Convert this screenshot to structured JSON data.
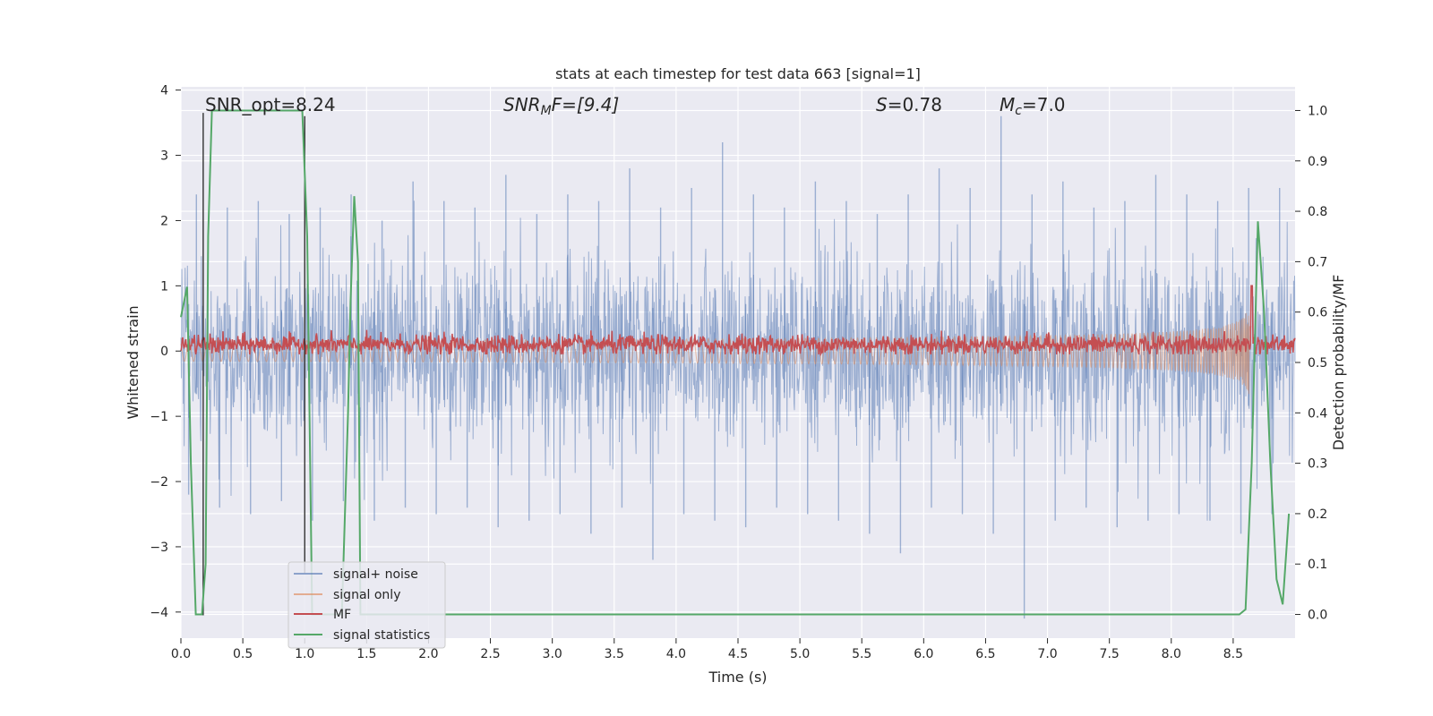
{
  "chart_data": {
    "type": "line",
    "title": "stats at each timestep for test data 663 [signal=1]",
    "xlabel": "Time (s)",
    "ylabel": "Whitened strain",
    "ylabel_right": "Detection probability/MF",
    "xlim": [
      0.0,
      9.0
    ],
    "ylim": [
      -4.4,
      4.05
    ],
    "ylim_right": [
      -0.047,
      1.047
    ],
    "x_ticks": [
      0.0,
      0.5,
      1.0,
      1.5,
      2.0,
      2.5,
      3.0,
      3.5,
      4.0,
      4.5,
      5.0,
      5.5,
      6.0,
      6.5,
      7.0,
      7.5,
      8.0,
      8.5
    ],
    "x_tick_labels": [
      "0.0",
      "0.5",
      "1.0",
      "1.5",
      "2.0",
      "2.5",
      "3.0",
      "3.5",
      "4.0",
      "4.5",
      "5.0",
      "5.5",
      "6.0",
      "6.5",
      "7.0",
      "7.5",
      "8.0",
      "8.5"
    ],
    "y_ticks": [
      4,
      3,
      2,
      1,
      0,
      -1,
      -2,
      -3,
      -4
    ],
    "y_tick_labels": [
      "4",
      "3",
      "2",
      "1",
      "0",
      "−1",
      "−2",
      "−3",
      "−4"
    ],
    "y_right_ticks": [
      1.0,
      0.9,
      0.8,
      0.7,
      0.6,
      0.5,
      0.4,
      0.3,
      0.2,
      0.1,
      0.0
    ],
    "y_right_tick_labels": [
      "1.0",
      "0.9",
      "0.8",
      "0.7",
      "0.6",
      "0.5",
      "0.4",
      "0.3",
      "0.2",
      "0.1",
      "0.0"
    ],
    "grid": true,
    "legend_position": "lower-left",
    "annotations": {
      "snr_opt": "SNR_opt=8.24",
      "snr_mf_sym": "SNR",
      "snr_mf_sub": "M",
      "snr_mf_rest": "F=[9.4]",
      "s_sym": "S",
      "s_rest": "=0.78",
      "mc_sym": "M",
      "mc_sub": "c",
      "mc_rest": "=7.0"
    },
    "series": [
      {
        "name": "signal+ noise",
        "color": "#4c72b0",
        "opacity": 0.5,
        "description_values": "whitened noise, range approx -4 to 3.7",
        "envelope_pos": [
          2.4,
          2.2,
          2.3,
          2.1,
          2.2,
          2.4,
          2.0,
          2.6,
          2.3,
          2.2,
          2.7,
          2.1,
          2.4,
          2.3,
          2.8,
          2.2,
          2.5,
          3.2,
          2.4,
          2.2,
          2.6,
          2.3,
          2.1,
          2.4,
          2.8,
          2.5,
          3.6,
          2.4,
          2.6,
          2.2,
          2.3,
          2.7,
          2.4,
          2.3,
          2.5,
          2.5
        ],
        "envelope_neg": [
          -2.2,
          -2.4,
          -2.5,
          -2.3,
          -2.6,
          -2.3,
          -2.6,
          -2.4,
          -2.5,
          -2.4,
          -2.7,
          -2.6,
          -2.5,
          -2.8,
          -2.4,
          -3.2,
          -2.5,
          -2.6,
          -2.7,
          -2.4,
          -2.5,
          -2.6,
          -2.8,
          -3.1,
          -2.4,
          -2.5,
          -2.8,
          -4.1,
          -2.6,
          -2.4,
          -2.7,
          -2.6,
          -2.5,
          -2.6,
          -2.8,
          -2.5
        ]
      },
      {
        "name": "signal only",
        "color": "#dd8452",
        "opacity": 0.5,
        "chirp_end_time": 8.65,
        "peak_amplitude": 0.9
      },
      {
        "name": "MF",
        "color": "#c44e52",
        "baseline": 0.1,
        "spread": 0.15,
        "spike": {
          "x": 8.65,
          "y": 1.0
        }
      },
      {
        "name": "signal statistics",
        "color": "#55a868",
        "axis": "right",
        "x": [
          0.0,
          0.05,
          0.08,
          0.12,
          0.17,
          0.2,
          0.22,
          0.25,
          0.3,
          0.4,
          0.5,
          0.6,
          0.7,
          0.8,
          0.9,
          0.98,
          1.02,
          1.06,
          1.1,
          1.2,
          1.3,
          1.35,
          1.37,
          1.4,
          1.43,
          1.45,
          2.0,
          3.0,
          4.0,
          5.0,
          6.0,
          7.0,
          8.0,
          8.55,
          8.6,
          8.65,
          8.7,
          8.75,
          8.8,
          8.85,
          8.9,
          8.95
        ],
        "y": [
          0.59,
          0.65,
          0.3,
          0.0,
          0.0,
          0.1,
          0.75,
          1.0,
          1.0,
          1.0,
          1.0,
          1.0,
          1.0,
          1.0,
          1.0,
          1.0,
          0.75,
          0.0,
          0.0,
          0.0,
          0.0,
          0.4,
          0.62,
          0.83,
          0.7,
          0.0,
          0.0,
          0.0,
          0.0,
          0.0,
          0.0,
          0.0,
          0.0,
          0.0,
          0.01,
          0.3,
          0.78,
          0.6,
          0.3,
          0.07,
          0.02,
          0.2
        ]
      }
    ],
    "vertical_lines": [
      {
        "x": 0.18,
        "top": 3.65,
        "bottom": -4.05,
        "color": "#222222"
      },
      {
        "x": 1.0,
        "top": 3.6,
        "bottom": -3.4,
        "color": "#222222"
      }
    ]
  }
}
